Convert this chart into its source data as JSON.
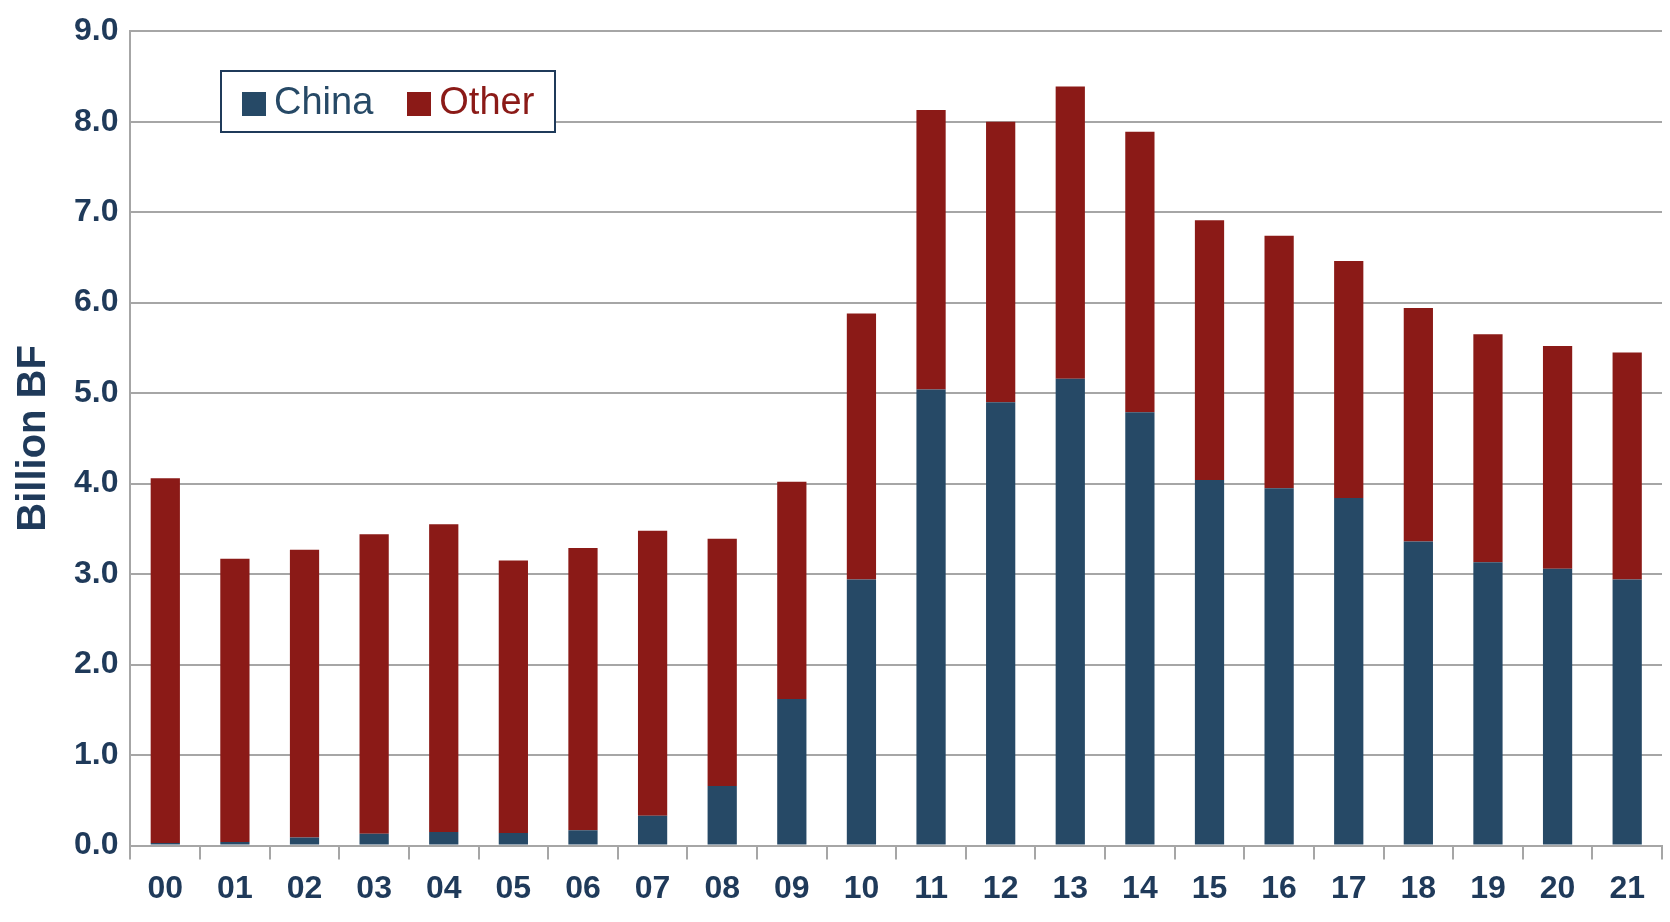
{
  "chart_data": {
    "type": "bar",
    "stacked": true,
    "ylabel": "Billion BF",
    "categories": [
      "00",
      "01",
      "02",
      "03",
      "04",
      "05",
      "06",
      "07",
      "08",
      "09",
      "10",
      "11",
      "12",
      "13",
      "14",
      "15",
      "16",
      "17",
      "18",
      "19",
      "20",
      "21"
    ],
    "series": [
      {
        "name": "China",
        "color": "#264966",
        "values": [
          0.03,
          0.04,
          0.09,
          0.13,
          0.15,
          0.14,
          0.17,
          0.33,
          0.66,
          1.62,
          2.94,
          5.04,
          4.9,
          5.16,
          4.79,
          4.04,
          3.95,
          3.84,
          3.36,
          3.13,
          3.06,
          2.94
        ]
      },
      {
        "name": "Other",
        "color": "#8b1a17",
        "values": [
          4.03,
          3.13,
          3.18,
          3.31,
          3.4,
          3.01,
          3.12,
          3.15,
          2.73,
          2.4,
          2.94,
          3.09,
          3.1,
          3.23,
          3.1,
          2.87,
          2.79,
          2.62,
          2.58,
          2.52,
          2.46,
          2.51
        ]
      }
    ],
    "ylim": [
      0,
      9
    ],
    "yticks": [
      {
        "value": 0,
        "label": "0.0"
      },
      {
        "value": 1,
        "label": "1.0"
      },
      {
        "value": 2,
        "label": "2.0"
      },
      {
        "value": 3,
        "label": "3.0"
      },
      {
        "value": 4,
        "label": "4.0"
      },
      {
        "value": 5,
        "label": "5.0"
      },
      {
        "value": 6,
        "label": "6.0"
      },
      {
        "value": 7,
        "label": "7.0"
      },
      {
        "value": 8,
        "label": "8.0"
      },
      {
        "value": 9,
        "label": "9.0"
      }
    ],
    "grid": "y",
    "legend": "top left"
  }
}
